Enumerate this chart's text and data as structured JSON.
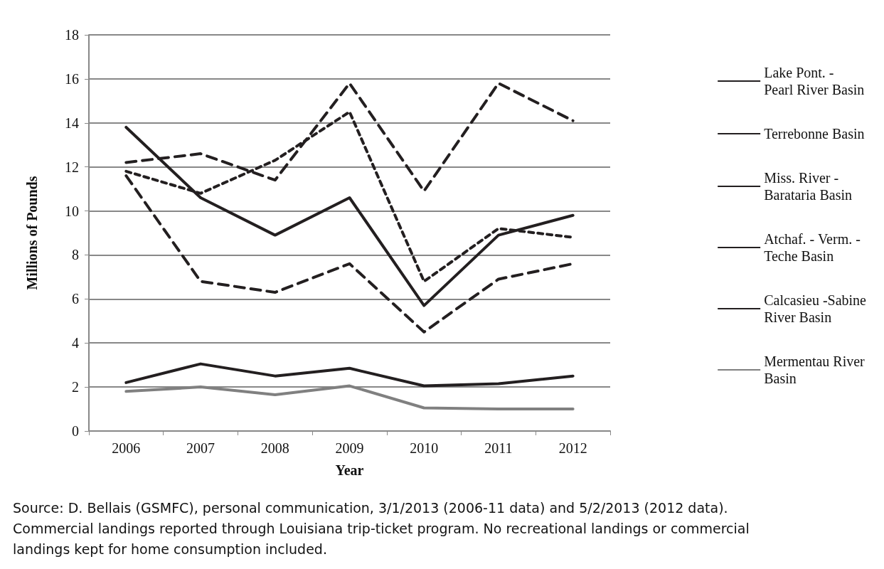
{
  "chart_data": {
    "type": "line",
    "xlabel": "Year",
    "ylabel": "Millions of Pounds",
    "categories": [
      "2006",
      "2007",
      "2008",
      "2009",
      "2010",
      "2011",
      "2012"
    ],
    "series": [
      {
        "name": "Lake Pont. - Pearl River Basin",
        "color": "#231f20",
        "line_style": "dashed",
        "values": [
          12.2,
          12.6,
          11.4,
          15.8,
          10.9,
          15.8,
          14.1
        ]
      },
      {
        "name": "Terrebonne Basin",
        "color": "#231f20",
        "line_style": "dotted",
        "values": [
          11.8,
          10.8,
          12.3,
          14.5,
          6.8,
          9.2,
          8.8
        ]
      },
      {
        "name": "Miss. River - Barataria Basin",
        "color": "#231f20",
        "line_style": "solid",
        "values": [
          13.8,
          10.6,
          8.9,
          10.6,
          5.7,
          8.9,
          9.8
        ]
      },
      {
        "name": "Atchaf. - Verm. - Teche Basin",
        "color": "#231f20",
        "line_style": "dashed",
        "values": [
          11.6,
          6.8,
          6.3,
          7.6,
          4.5,
          6.9,
          7.6
        ]
      },
      {
        "name": "Calcasieu -Sabine River Basin",
        "color": "#231f20",
        "line_style": "solid",
        "values": [
          2.2,
          3.05,
          2.5,
          2.85,
          2.05,
          2.15,
          2.5
        ]
      },
      {
        "name": "Mermentau River Basin",
        "color": "#808080",
        "line_style": "solid",
        "values": [
          1.8,
          2.0,
          1.65,
          2.05,
          1.05,
          1.0,
          1.0
        ]
      }
    ],
    "ylim": [
      0,
      18
    ],
    "yticks": [
      0,
      2,
      4,
      6,
      8,
      10,
      12,
      14,
      16,
      18
    ],
    "grid": "y",
    "legend": "right",
    "marker": "none",
    "annotations": [
      "Source: D. Bellais (GSMFC), personal communication, 3/1/2013 (2006-11 data) and 5/2/2013 (2012 data). Commercial landings reported through Louisiana trip-ticket program.  No recreational landings or commercial landings kept for home consumption included."
    ]
  }
}
